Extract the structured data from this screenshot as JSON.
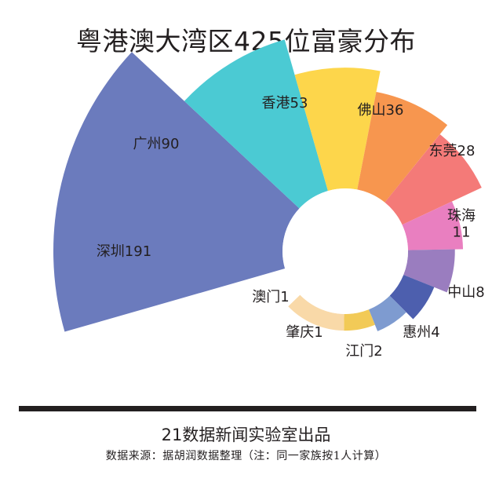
{
  "title": "粤港澳大湾区425位富豪分布",
  "chart_data": {
    "type": "pie",
    "variant": "nightingale-rose",
    "title": "粤港澳大湾区425位富豪分布",
    "total": 425,
    "categories": [
      "深圳",
      "广州",
      "香港",
      "佛山",
      "东莞",
      "珠海",
      "中山",
      "惠州",
      "江门",
      "肇庆",
      "澳门"
    ],
    "values": [
      191,
      90,
      53,
      36,
      28,
      11,
      8,
      4,
      2,
      1,
      1
    ],
    "labels": [
      "深圳191",
      "广州90",
      "香港53",
      "佛山36",
      "东莞28",
      "珠海\n11",
      "中山8",
      "惠州4",
      "江门2",
      "肇庆1",
      "澳门1"
    ],
    "colors": [
      "#6b7bbd",
      "#4bcad3",
      "#fdd64b",
      "#f7964f",
      "#f47a78",
      "#e97fc0",
      "#9a7dbf",
      "#4d5fae",
      "#7e9bd0",
      "#f2ca57",
      "#f9d9a8"
    ]
  },
  "footer": {
    "credit": "21数据新闻实验室出品",
    "source": "数据来源：据胡润数据整理（注：同一家族按1人计算）"
  }
}
